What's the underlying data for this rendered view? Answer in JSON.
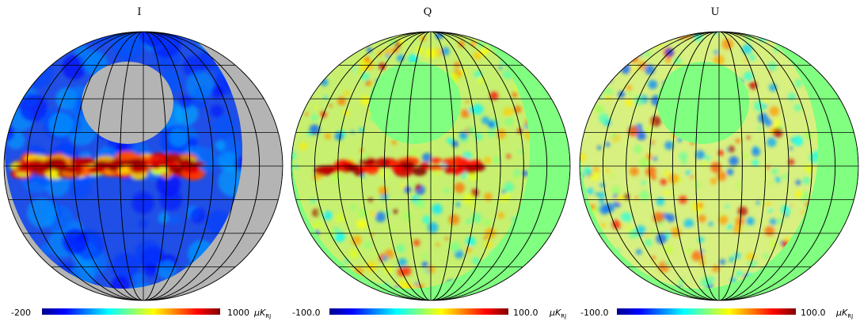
{
  "colorbar_gradient": [
    "#00008f",
    "#0000ff",
    "#0080ff",
    "#00ffff",
    "#80ff80",
    "#ffff00",
    "#ff8000",
    "#ff0000",
    "#800000"
  ],
  "panels": [
    {
      "title": "I",
      "background": "#b4b4b4",
      "mask_fill": "#1f4fe6",
      "band_type": "intensity",
      "colorbar": {
        "min": "-200",
        "max": "1000",
        "unit_main": "μK",
        "unit_sub": "RJ"
      }
    },
    {
      "title": "Q",
      "background": "#80ff80",
      "mask_fill": "#c8f070",
      "band_type": "polarization",
      "colorbar": {
        "min": "-100.0",
        "max": "100.0",
        "unit_main": "μK",
        "unit_sub": "RJ"
      }
    },
    {
      "title": "U",
      "background": "#80ff80",
      "mask_fill": "#d8f080",
      "band_type": "polarization",
      "colorbar": {
        "min": "-100.0",
        "max": "100.0",
        "unit_main": "μK",
        "unit_sub": "RJ"
      }
    }
  ]
}
